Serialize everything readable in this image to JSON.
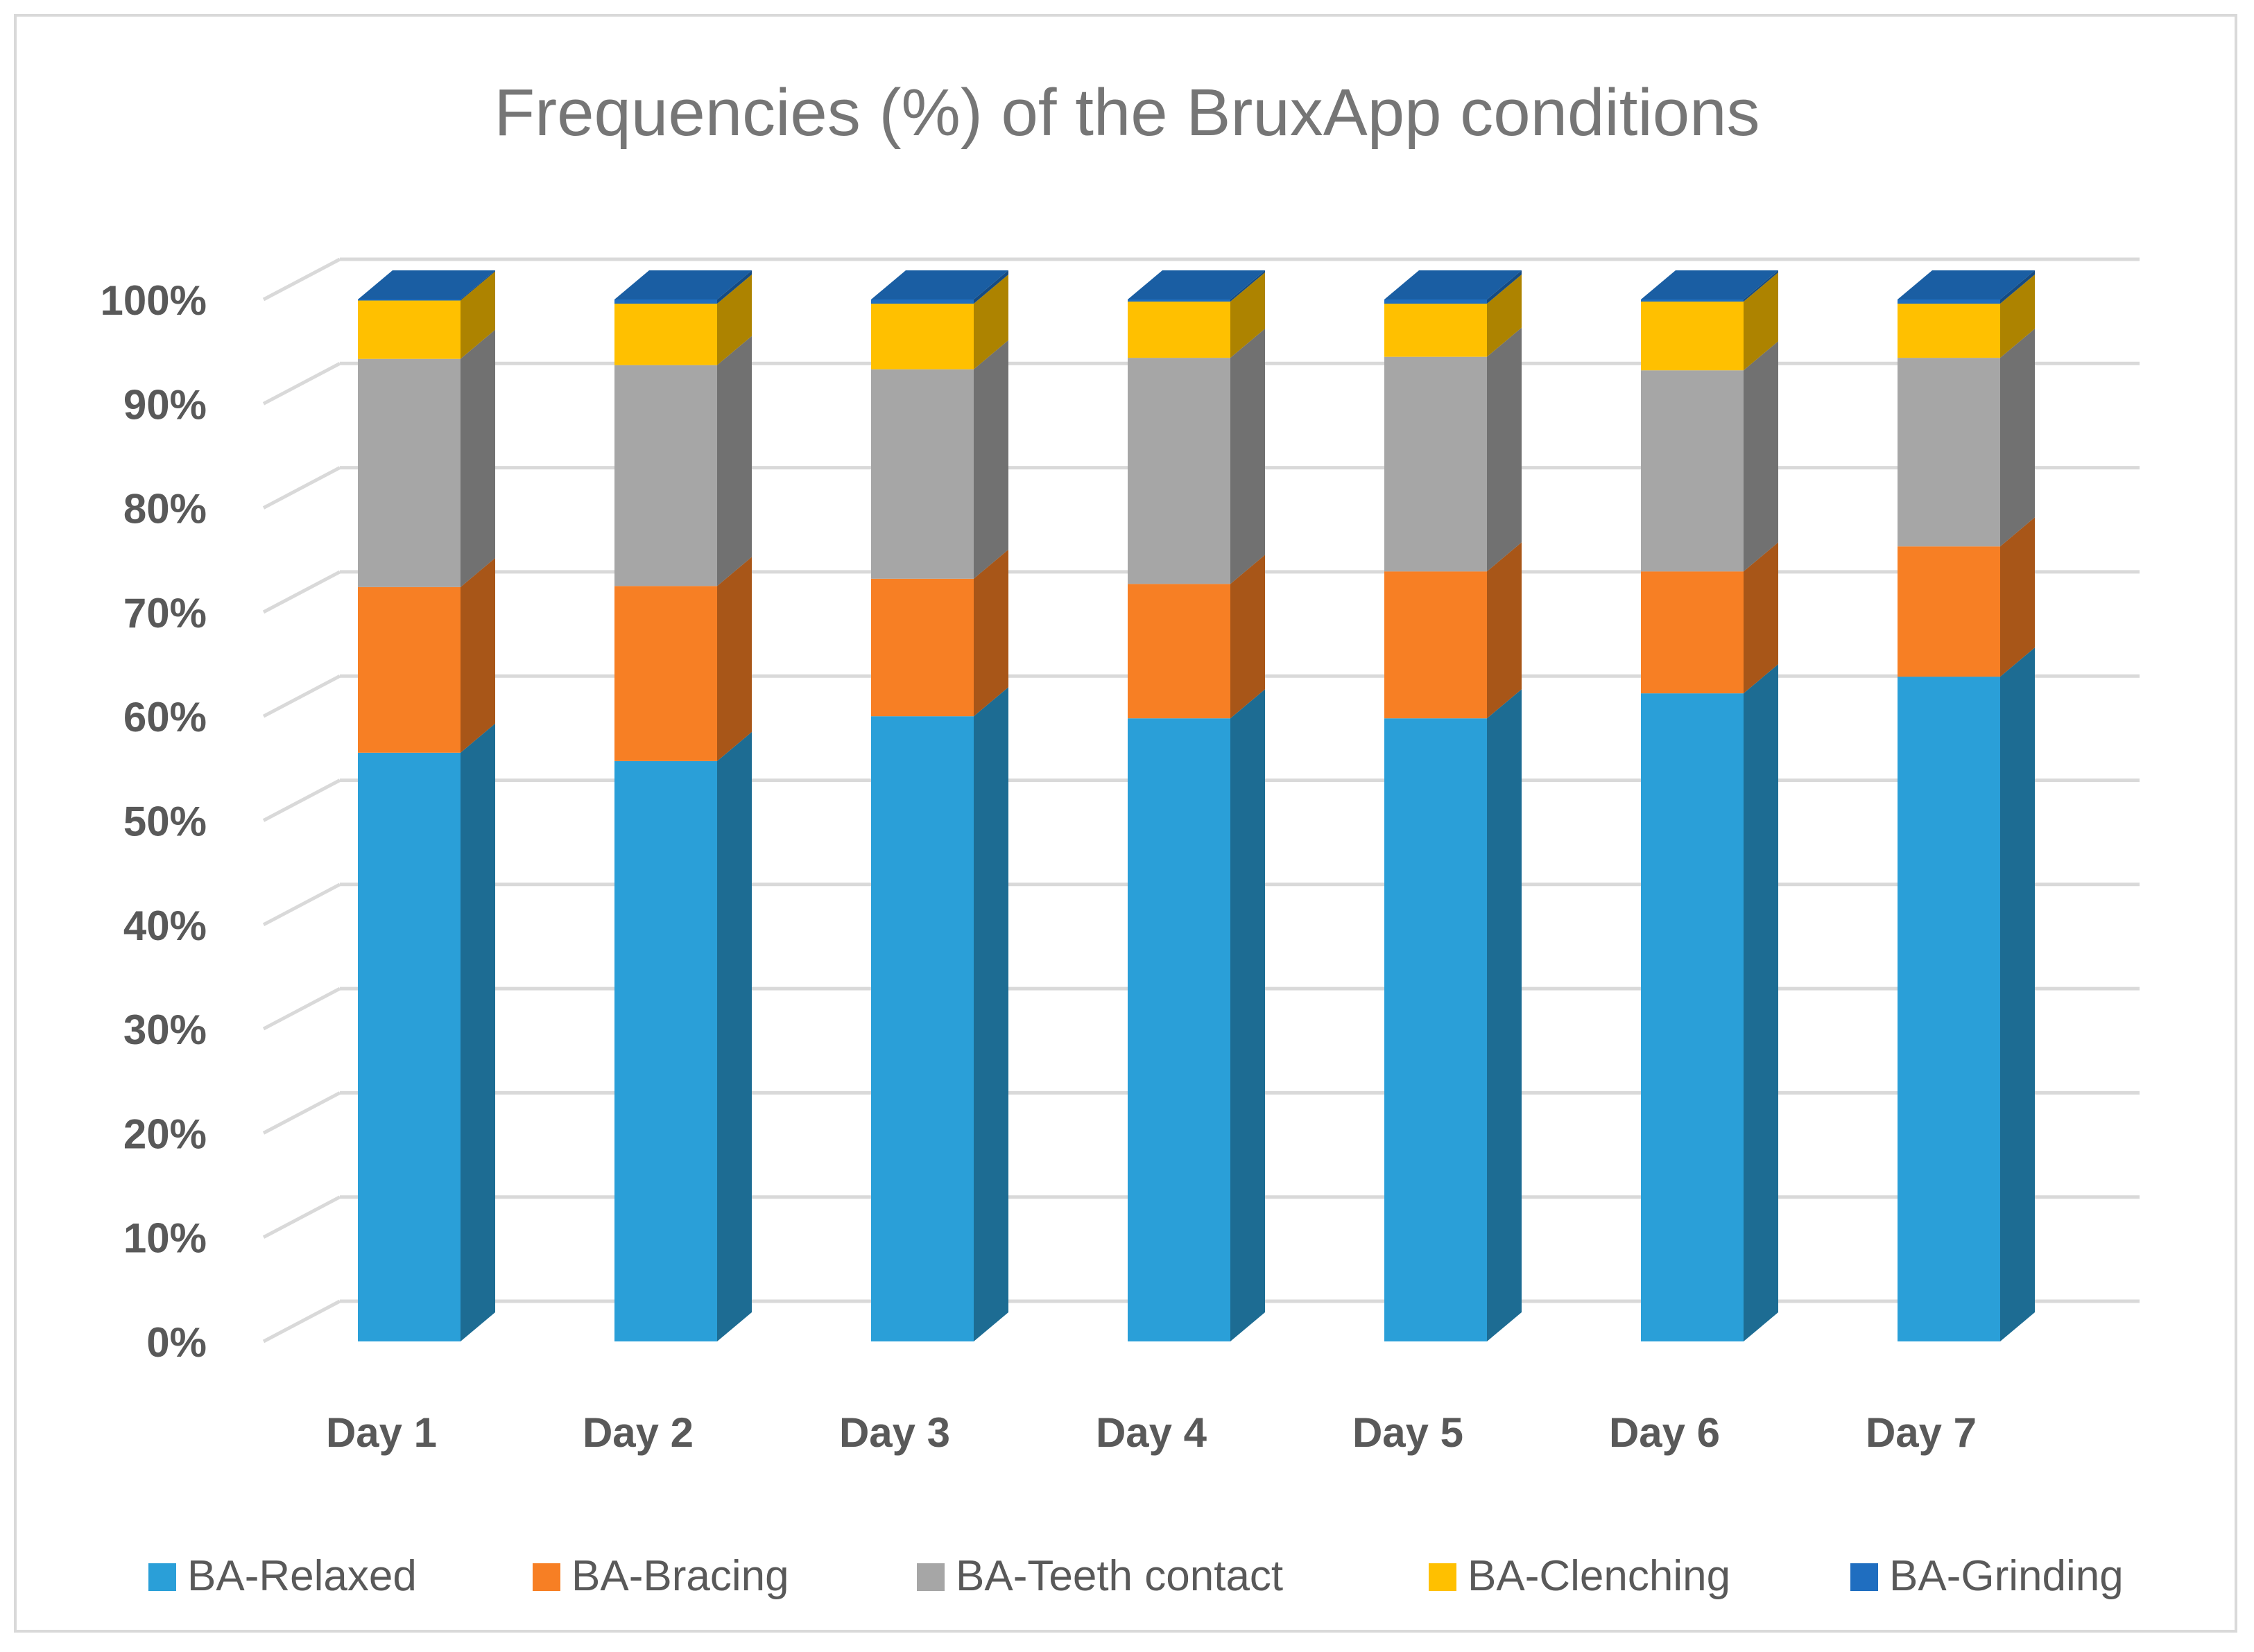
{
  "chart_data": {
    "type": "bar",
    "stacked": true,
    "percent_stacked": true,
    "three_d": true,
    "title": "Frequencies (%) of the BruxApp conditions",
    "xlabel": "",
    "ylabel": "",
    "ylim": [
      0,
      100
    ],
    "y_ticks": [
      "0%",
      "10%",
      "20%",
      "30%",
      "40%",
      "50%",
      "60%",
      "70%",
      "80%",
      "90%",
      "100%"
    ],
    "grid": true,
    "legend_position": "bottom",
    "categories": [
      "Day 1",
      "Day 2",
      "Day 3",
      "Day 4",
      "Day 5",
      "Day 6",
      "Day 7"
    ],
    "series": [
      {
        "name": "BA-Relaxed",
        "color": "#2A9FD8",
        "values": [
          56.5,
          55.7,
          60.0,
          59.8,
          59.8,
          62.2,
          63.8
        ]
      },
      {
        "name": "BA-Bracing",
        "color": "#F77F24",
        "values": [
          15.9,
          16.8,
          13.2,
          12.9,
          14.1,
          11.7,
          12.5
        ]
      },
      {
        "name": "BA-Teeth contact",
        "color": "#A6A6A6",
        "values": [
          21.9,
          21.2,
          20.1,
          21.7,
          20.6,
          19.3,
          18.1
        ]
      },
      {
        "name": "BA-Clenching",
        "color": "#FFC000",
        "values": [
          5.6,
          5.9,
          6.3,
          5.4,
          5.1,
          6.6,
          5.2
        ]
      },
      {
        "name": "BA-Grinding",
        "color": "#1F6EC0",
        "values": [
          0.1,
          0.4,
          0.4,
          0.2,
          0.4,
          0.2,
          0.4
        ]
      }
    ]
  }
}
